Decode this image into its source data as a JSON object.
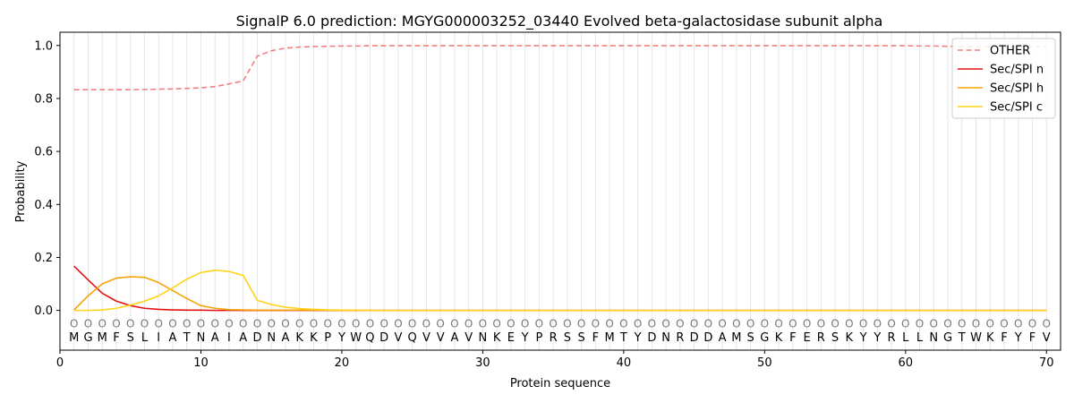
{
  "chart_data": {
    "type": "line",
    "title": "SignalP 6.0 prediction: MGYG000003252_03440 Evolved beta-galactosidase subunit alpha",
    "xlabel": "Protein sequence",
    "ylabel": "Probability",
    "xlim": [
      0,
      71
    ],
    "ylim": [
      -0.15,
      1.05
    ],
    "xticks": [
      0,
      10,
      20,
      30,
      40,
      50,
      60,
      70
    ],
    "yticks": [
      0.0,
      0.2,
      0.4,
      0.6,
      0.8,
      1.0
    ],
    "grid": "vertical lines at each residue",
    "legend_position": "top-right",
    "sequence": [
      "M",
      "G",
      "M",
      "F",
      "S",
      "L",
      "I",
      "A",
      "T",
      "N",
      "A",
      "I",
      "A",
      "D",
      "N",
      "A",
      "K",
      "K",
      "P",
      "Y",
      "W",
      "Q",
      "D",
      "V",
      "Q",
      "V",
      "V",
      "A",
      "V",
      "N",
      "K",
      "E",
      "Y",
      "P",
      "R",
      "S",
      "S",
      "F",
      "M",
      "T",
      "Y",
      "D",
      "N",
      "R",
      "D",
      "D",
      "A",
      "M",
      "S",
      "G",
      "K",
      "F",
      "E",
      "R",
      "S",
      "K",
      "Y",
      "Y",
      "R",
      "L",
      "L",
      "N",
      "G",
      "T",
      "W",
      "K",
      "F",
      "Y",
      "F",
      "V"
    ],
    "predicted_labels": [
      "O",
      "O",
      "O",
      "O",
      "O",
      "O",
      "O",
      "O",
      "O",
      "O",
      "O",
      "O",
      "O",
      "O",
      "O",
      "O",
      "O",
      "O",
      "O",
      "O",
      "O",
      "O",
      "O",
      "O",
      "O",
      "O",
      "O",
      "O",
      "O",
      "O",
      "O",
      "O",
      "O",
      "O",
      "O",
      "O",
      "O",
      "O",
      "O",
      "O",
      "O",
      "O",
      "O",
      "O",
      "O",
      "O",
      "O",
      "O",
      "O",
      "O",
      "O",
      "O",
      "O",
      "O",
      "O",
      "O",
      "O",
      "O",
      "O",
      "O",
      "O",
      "O",
      "O",
      "O",
      "O",
      "O",
      "O",
      "O",
      "O",
      "O"
    ],
    "series": [
      {
        "name": "OTHER",
        "color": "#f08080",
        "dash": "dashed",
        "values": [
          0.833,
          0.833,
          0.833,
          0.833,
          0.833,
          0.834,
          0.835,
          0.836,
          0.838,
          0.84,
          0.845,
          0.855,
          0.866,
          0.96,
          0.98,
          0.99,
          0.994,
          0.996,
          0.997,
          0.998,
          0.998,
          0.999,
          0.999,
          0.999,
          0.999,
          0.999,
          0.999,
          0.999,
          0.999,
          0.999,
          0.999,
          0.999,
          0.999,
          0.999,
          0.999,
          0.999,
          0.999,
          0.999,
          0.999,
          0.999,
          0.999,
          0.999,
          0.999,
          0.999,
          0.999,
          0.999,
          0.999,
          0.999,
          0.999,
          0.999,
          0.999,
          0.999,
          0.999,
          0.999,
          0.999,
          0.999,
          0.999,
          0.999,
          0.999,
          0.999,
          0.998,
          0.998,
          0.997,
          0.996,
          0.995,
          0.995,
          0.995,
          0.995,
          0.995,
          0.995
        ]
      },
      {
        "name": "Sec/SPI n",
        "color": "#e3130f",
        "dash": "solid",
        "values": [
          0.167,
          0.115,
          0.065,
          0.035,
          0.018,
          0.008,
          0.004,
          0.002,
          0.001,
          0.001,
          0,
          0,
          0,
          0,
          0,
          0,
          0,
          0,
          0,
          0,
          0,
          0,
          0,
          0,
          0,
          0,
          0,
          0,
          0,
          0,
          0,
          0,
          0,
          0,
          0,
          0,
          0,
          0,
          0,
          0,
          0,
          0,
          0,
          0,
          0,
          0,
          0,
          0,
          0,
          0,
          0,
          0,
          0,
          0,
          0,
          0,
          0,
          0,
          0,
          0,
          0,
          0,
          0,
          0,
          0,
          0,
          0,
          0,
          0,
          0
        ]
      },
      {
        "name": "Sec/SPI h",
        "color": "#f5a20a",
        "dash": "solid",
        "values": [
          0.002,
          0.055,
          0.1,
          0.122,
          0.127,
          0.125,
          0.105,
          0.075,
          0.045,
          0.018,
          0.008,
          0.003,
          0.002,
          0.001,
          0.001,
          0.001,
          0.001,
          0.001,
          0,
          0,
          0,
          0,
          0,
          0,
          0,
          0,
          0,
          0,
          0,
          0,
          0,
          0,
          0,
          0,
          0,
          0,
          0,
          0,
          0,
          0,
          0,
          0,
          0,
          0,
          0,
          0,
          0,
          0,
          0,
          0,
          0,
          0,
          0,
          0,
          0,
          0,
          0,
          0,
          0,
          0,
          0,
          0,
          0,
          0,
          0,
          0,
          0,
          0,
          0,
          0
        ]
      },
      {
        "name": "Sec/SPI c",
        "color": "#ffd319",
        "dash": "solid",
        "values": [
          0.0,
          0.0,
          0.002,
          0.008,
          0.02,
          0.035,
          0.055,
          0.085,
          0.118,
          0.143,
          0.152,
          0.147,
          0.132,
          0.038,
          0.022,
          0.012,
          0.007,
          0.004,
          0.002,
          0.001,
          0.001,
          0,
          0,
          0,
          0,
          0,
          0,
          0,
          0,
          0,
          0,
          0,
          0,
          0,
          0,
          0,
          0,
          0,
          0,
          0,
          0,
          0,
          0,
          0,
          0,
          0,
          0,
          0,
          0,
          0,
          0,
          0,
          0,
          0,
          0,
          0,
          0,
          0,
          0,
          0,
          0,
          0,
          0,
          0,
          0,
          0,
          0,
          0,
          0,
          0
        ]
      }
    ]
  }
}
